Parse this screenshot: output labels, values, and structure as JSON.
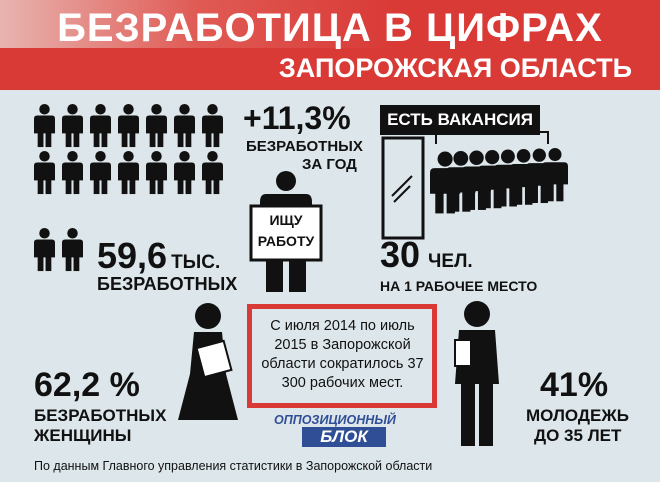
{
  "header": {
    "title": "БЕЗРАБОТИЦА В ЦИФРАХ",
    "subtitle": "ЗАПОРОЖСКАЯ ОБЛАСТЬ"
  },
  "stat_unemployed": {
    "value": "59,6",
    "unit": "тыс.",
    "label": "БЕЗРАБОТНЫХ"
  },
  "stat_growth": {
    "value": "+11,3%",
    "label_line1": "БЕЗРАБОТНЫХ",
    "label_line2": "ЗА ГОД",
    "sign_line1": "ИЩУ",
    "sign_line2": "РАБОТУ"
  },
  "stat_vacancy": {
    "banner": "ЕСТЬ ВАКАНСИЯ",
    "value": "30",
    "unit": "чел.",
    "label": "НА 1 РАБОЧЕЕ МЕСТО"
  },
  "stat_women": {
    "value": "62,2 %",
    "label_line1": "БЕЗРАБОТНЫХ",
    "label_line2": "ЖЕНЩИНЫ"
  },
  "stat_youth": {
    "value": "41%",
    "label_line1": "МОЛОДЕЖЬ",
    "label_line2": "ДО 35 ЛЕТ"
  },
  "center_note": "С июля 2014 по июль 2015 в Запорожской области сократилось 37 300 рабочих мест.",
  "logo": {
    "line1": "ОППОЗИЦИОННЫЙ",
    "line2": "БЛОК"
  },
  "footer": "По данным Главного управления статистики в Запорожской области",
  "colors": {
    "accent": "#d93a36",
    "background": "#dde6ea",
    "logo_blue": "#2f4e96"
  }
}
